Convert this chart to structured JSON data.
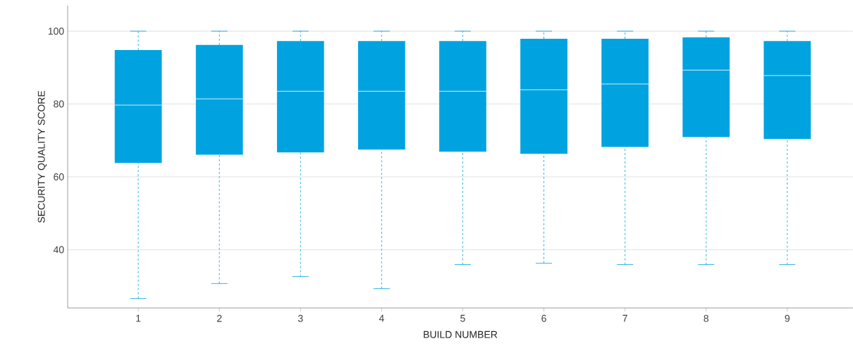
{
  "chart_data": {
    "type": "box",
    "xlabel": "BUILD NUMBER",
    "ylabel": "SECURITY QUALITY SCORE",
    "categories": [
      "1",
      "2",
      "3",
      "4",
      "5",
      "6",
      "7",
      "8",
      "9"
    ],
    "color": "#00a3e0",
    "ylim": [
      24,
      107
    ],
    "yticks": [
      40,
      60,
      80,
      100
    ],
    "grid": "y",
    "line_style": "dashed",
    "boxes": [
      {
        "low": 26.6,
        "q1": 63.8,
        "median": 79.7,
        "q3": 94.8,
        "high": 100
      },
      {
        "low": 30.7,
        "q1": 66.1,
        "median": 81.4,
        "q3": 96.2,
        "high": 100
      },
      {
        "low": 32.6,
        "q1": 66.7,
        "median": 83.5,
        "q3": 97.3,
        "high": 100
      },
      {
        "low": 29.3,
        "q1": 67.5,
        "median": 83.5,
        "q3": 97.3,
        "high": 100
      },
      {
        "low": 35.9,
        "q1": 66.9,
        "median": 83.5,
        "q3": 97.3,
        "high": 100
      },
      {
        "low": 36.3,
        "q1": 66.3,
        "median": 83.9,
        "q3": 97.9,
        "high": 100
      },
      {
        "low": 35.9,
        "q1": 68.2,
        "median": 85.5,
        "q3": 97.9,
        "high": 100
      },
      {
        "low": 35.9,
        "q1": 70.9,
        "median": 89.3,
        "q3": 98.3,
        "high": 100
      },
      {
        "low": 35.9,
        "q1": 70.4,
        "median": 87.8,
        "q3": 97.3,
        "high": 100
      }
    ]
  }
}
